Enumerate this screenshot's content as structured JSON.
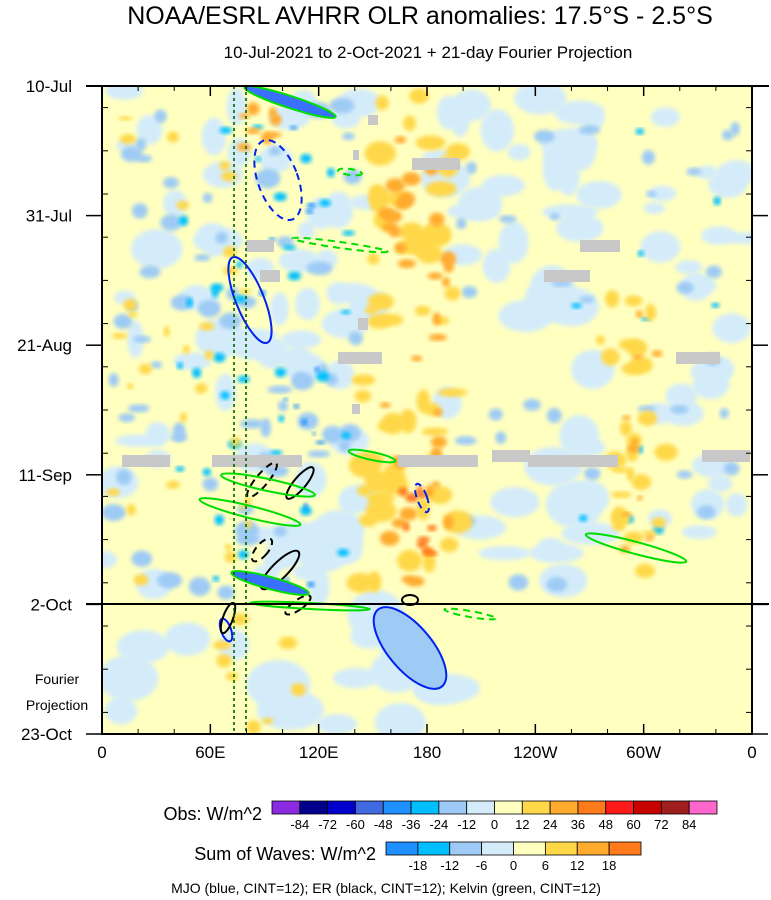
{
  "chart_data": {
    "type": "heatmap",
    "title": "NOAA/ESRL AVHRR OLR anomalies: 17.5°S - 2.5°S",
    "subtitle": "10-Jul-2021 to 2-Oct-2021 + 21-day Fourier Projection",
    "x_axis": {
      "ticks": [
        "0",
        "60E",
        "120E",
        "180",
        "120W",
        "60W",
        "0"
      ],
      "range_deg_east": [
        0,
        360
      ]
    },
    "y_axis": {
      "ticks": [
        "10-Jul",
        "31-Jul",
        "21-Aug",
        "11-Sep",
        "2-Oct",
        "23-Oct"
      ],
      "range": [
        "10-Jul",
        "23-Oct"
      ]
    },
    "divider_date": "2-Oct",
    "projection_label_line1": "Fourier",
    "projection_label_line2": "Projection",
    "reference_lines_lon": [
      68,
      75
    ],
    "obs_legend": {
      "label": "Obs: W/m^2",
      "levels": [
        "-84",
        "-72",
        "-60",
        "-48",
        "-36",
        "-24",
        "-12",
        "0",
        "12",
        "24",
        "36",
        "48",
        "60",
        "72",
        "84"
      ],
      "colors": [
        "#8a2be2",
        "#00008b",
        "#0000cd",
        "#4169e1",
        "#1e90ff",
        "#00bfff",
        "#9ecbf5",
        "#d4ecfa",
        "#ffffc0",
        "#ffd84a",
        "#ffab2e",
        "#ff7a1a",
        "#ff1a1a",
        "#c80000",
        "#a01e1e",
        "#ff66cc"
      ]
    },
    "waves_legend": {
      "label": "Sum of Waves: W/m^2",
      "levels": [
        "-18",
        "-12",
        "-6",
        "0",
        "6",
        "12",
        "18"
      ],
      "colors": [
        "#1e90ff",
        "#00bfff",
        "#9ecbf5",
        "#d4ecfa",
        "#ffffc0",
        "#ffd84a",
        "#ffab2e",
        "#ff7a1a"
      ]
    },
    "footer": "MJO (blue, CINT=12); ER (black, CINT=12); Kelvin (green, CINT=12)",
    "contour_colors": {
      "mjo": "#0022ee",
      "er": "#000000",
      "kelvin": "#00dd00"
    }
  }
}
